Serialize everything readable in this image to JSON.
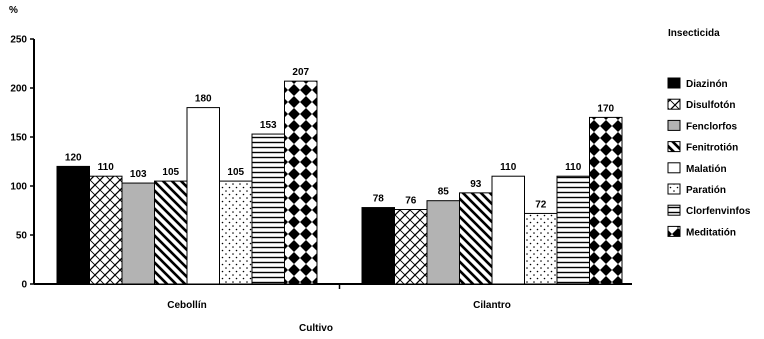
{
  "chart_data": {
    "type": "bar",
    "title": "",
    "xlabel": "Cultivo",
    "ylabel": "%",
    "ylim": [
      0,
      250
    ],
    "yticks": [
      0,
      50,
      100,
      150,
      200,
      250
    ],
    "categories": [
      "Cebollín",
      "Cilantro"
    ],
    "legend_title": "Insecticida",
    "legend_position": "right",
    "grid": false,
    "series": [
      {
        "name": "Diazinón",
        "pattern": "solid-black",
        "values": [
          120,
          78
        ]
      },
      {
        "name": "Disulfotón",
        "pattern": "crosshatch",
        "values": [
          110,
          76
        ]
      },
      {
        "name": "Fenclorfos",
        "pattern": "solid-gray",
        "values": [
          103,
          85
        ]
      },
      {
        "name": "Fenitrotión",
        "pattern": "diagonal",
        "values": [
          105,
          93
        ]
      },
      {
        "name": "Malatión",
        "pattern": "white",
        "values": [
          180,
          110
        ]
      },
      {
        "name": "Paratión",
        "pattern": "dots",
        "values": [
          105,
          72
        ]
      },
      {
        "name": "Clorfenvinfos",
        "pattern": "horizontal",
        "values": [
          153,
          110
        ]
      },
      {
        "name": "Meditatión",
        "pattern": "checker",
        "values": [
          207,
          170
        ]
      }
    ],
    "colors": {
      "black": "#000000",
      "gray": "#b3b3b3",
      "white": "#ffffff"
    }
  }
}
